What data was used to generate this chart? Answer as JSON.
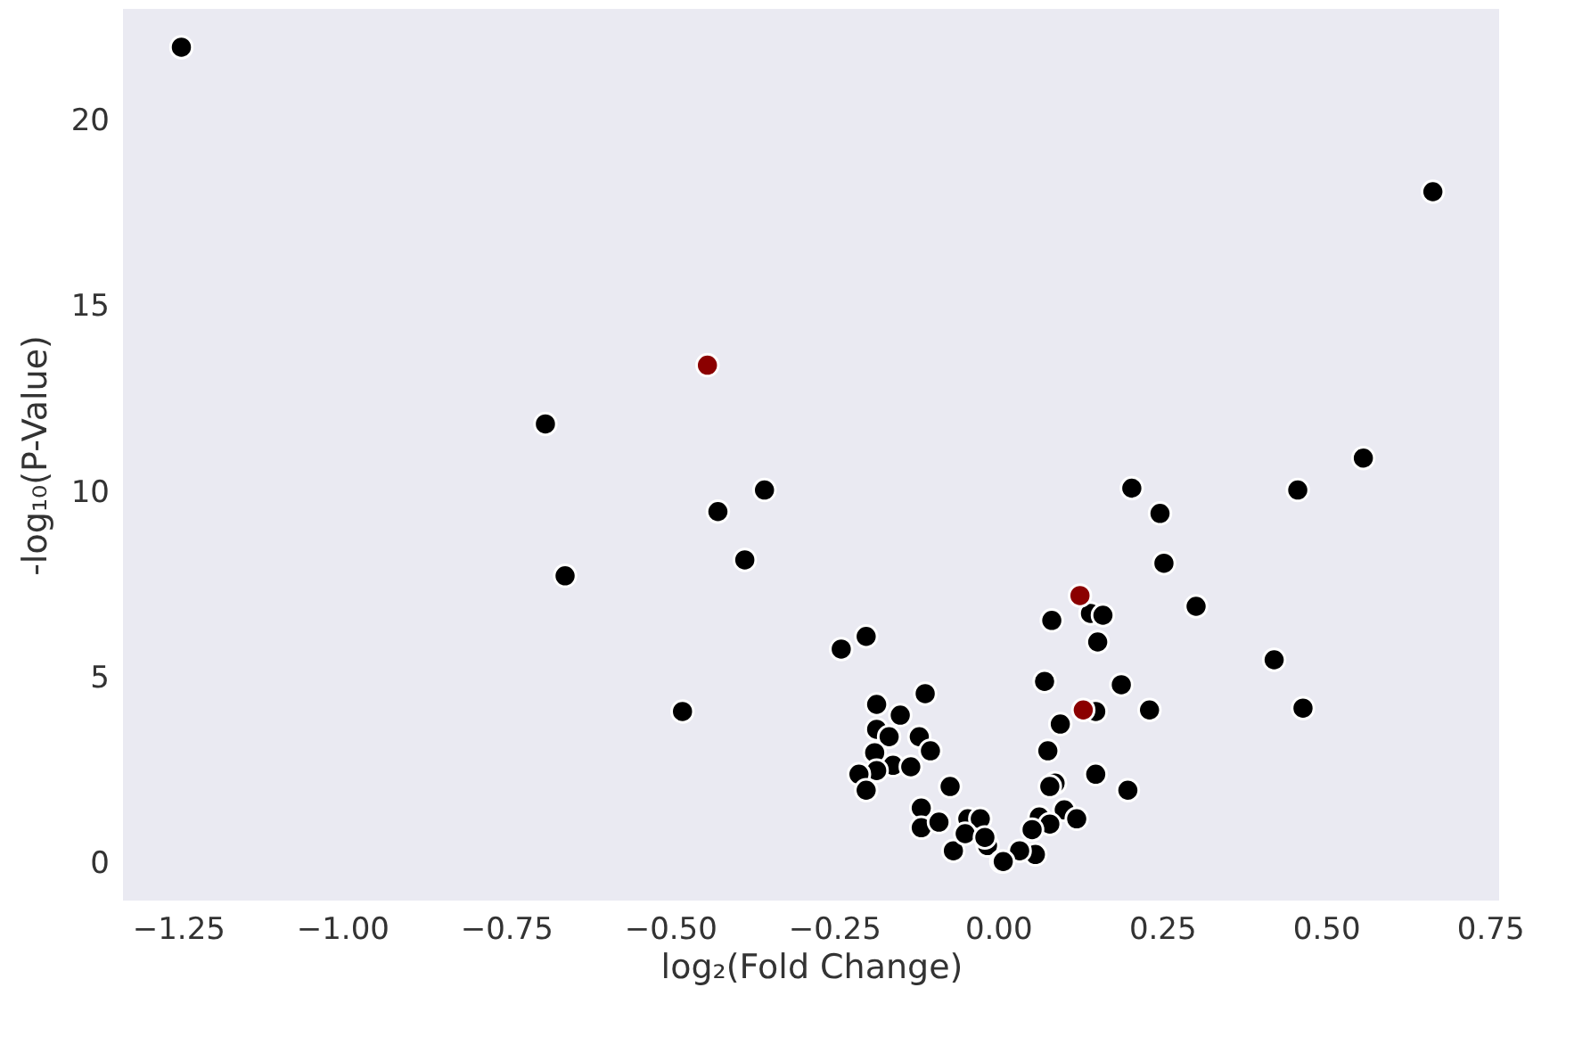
{
  "chart_data": {
    "type": "scatter",
    "xlabel": "log₂(Fold Change)",
    "ylabel": "-log₁₀(P-Value)",
    "xlim": [
      -1.334,
      0.764
    ],
    "ylim": [
      -1.0,
      23.0
    ],
    "xticks": [
      {
        "value": -1.25,
        "label": "−1.25"
      },
      {
        "value": -1.0,
        "label": "−1.00"
      },
      {
        "value": -0.75,
        "label": "−0.75"
      },
      {
        "value": -0.5,
        "label": "−0.50"
      },
      {
        "value": -0.25,
        "label": "−0.25"
      },
      {
        "value": 0,
        "label": "0.00"
      },
      {
        "value": 0.25,
        "label": "0.25"
      },
      {
        "value": 0.5,
        "label": "0.50"
      },
      {
        "value": 0.75,
        "label": "0.75"
      }
    ],
    "yticks": [
      0,
      5,
      10,
      15,
      20
    ],
    "grid": false,
    "legend": false,
    "marker": "circle",
    "series": [
      {
        "color": "#000000",
        "x": [
          -1.245,
          0.663,
          -0.69,
          -0.66,
          -0.427,
          -0.356,
          -0.386,
          -0.481,
          -0.239,
          -0.201,
          0.204,
          0.247,
          0.253,
          0.302,
          0.457,
          0.557,
          0.421,
          0.465,
          0.188,
          0.231,
          0.198,
          0.082,
          0.141,
          0.16,
          0.152,
          0.071,
          0.149,
          0.095,
          0.076,
          0.149,
          0.087,
          0.079,
          0.101,
          0.12,
          0.063,
          0.079,
          0.052,
          0.057,
          -0.111,
          -0.185,
          -0.149,
          -0.185,
          -0.166,
          -0.12,
          -0.103,
          -0.188,
          -0.16,
          -0.133,
          -0.185,
          -0.212,
          -0.201,
          -0.073,
          -0.117,
          -0.117,
          -0.09,
          -0.068,
          -0.046,
          -0.027,
          -0.016,
          0.005,
          0.033,
          -0.05,
          -0.02,
          0.008
        ],
        "values": [
          21.97,
          18.08,
          11.83,
          7.74,
          9.47,
          10.05,
          8.17,
          4.09,
          5.77,
          6.11,
          10.1,
          9.42,
          8.08,
          6.92,
          10.05,
          10.91,
          5.48,
          4.18,
          4.81,
          4.13,
          1.97,
          6.54,
          6.73,
          6.68,
          5.96,
          4.9,
          4.09,
          3.75,
          3.03,
          2.4,
          2.16,
          2.07,
          1.44,
          1.2,
          1.25,
          1.06,
          0.91,
          0.24,
          4.57,
          4.28,
          3.99,
          3.61,
          3.41,
          3.41,
          3.03,
          2.98,
          2.64,
          2.6,
          2.5,
          2.4,
          1.97,
          2.07,
          1.49,
          0.96,
          1.11,
          0.34,
          1.2,
          1.2,
          0.48,
          0.05,
          0.34,
          0.8,
          0.7,
          0.05
        ]
      },
      {
        "color": "#8b0000",
        "x": [
          -0.443,
          0.125,
          0.13
        ],
        "values": [
          13.41,
          7.21,
          4.13
        ]
      }
    ]
  }
}
